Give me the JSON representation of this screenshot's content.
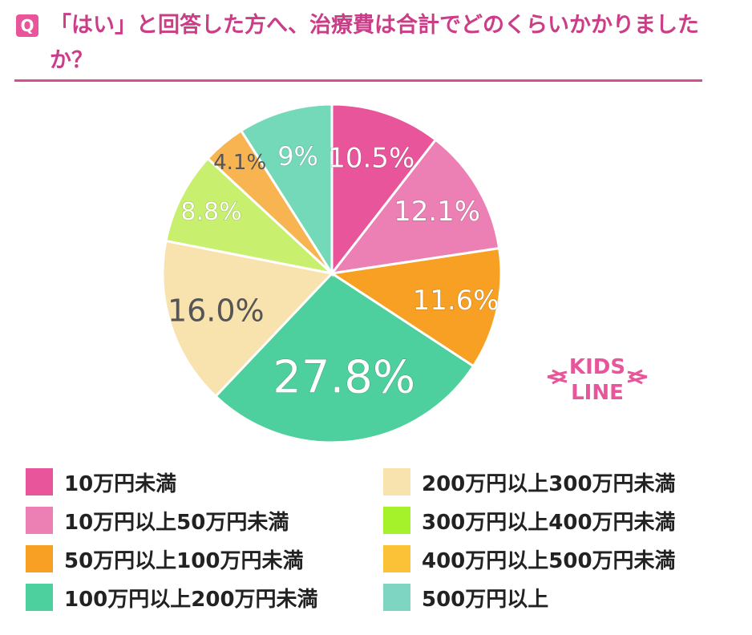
{
  "question": {
    "badge": "Q",
    "text": "「はい」と回答した方へ、治療費は合計でどのくらいかかりましたか？"
  },
  "logo": {
    "text_line1": "KIDS",
    "text_line2": "LINE"
  },
  "chart_data": {
    "type": "pie",
    "title": "「はい」と回答した方へ、治療費は合計でどのくらいかかりましたか？",
    "start": "12 o'clock, clockwise",
    "slices": [
      {
        "label": "10万円未満",
        "value": 10.5,
        "display": "10.5%",
        "color": "#e8559b"
      },
      {
        "label": "10万円以上50万円未満",
        "value": 12.1,
        "display": "12.1%",
        "color": "#ec7fb3"
      },
      {
        "label": "50万円以上100万円未満",
        "value": 11.6,
        "display": "11.6%",
        "color": "#f8a024"
      },
      {
        "label": "100万円以上200万円未満",
        "value": 27.8,
        "display": "27.8%",
        "color": "#4ecf9e"
      },
      {
        "label": "200万円以上300万円未満",
        "value": 16.0,
        "display": "16.0%",
        "color": "#f8e2ad"
      },
      {
        "label": "300万円以上400万円未満",
        "value": 8.8,
        "display": "8.8%",
        "color": "#c8f06e"
      },
      {
        "label": "400万円以上500万円未満",
        "value": 4.1,
        "display": "4.1%",
        "color": "#f8b450"
      },
      {
        "label": "500万円以上",
        "value": 9.0,
        "display": "9%",
        "color": "#74d9b8"
      }
    ],
    "legend": {
      "placement": "bottom, two columns",
      "entries": [
        {
          "label": "10万円未満",
          "color": "#e8559b"
        },
        {
          "label": "10万円以上50万円未満",
          "color": "#ec7fb3"
        },
        {
          "label": "50万円以上100万円未満",
          "color": "#f8a024"
        },
        {
          "label": "100万円以上200万円未満",
          "color": "#4ecf9e"
        },
        {
          "label": "200万円以上300万円未満",
          "color": "#f8e2ad"
        },
        {
          "label": "300万円以上400万円未満",
          "color": "#a6f22a"
        },
        {
          "label": "400万円以上500万円未満",
          "color": "#fbc238"
        },
        {
          "label": "500万円以上",
          "color": "#7ed6c2"
        }
      ]
    }
  }
}
